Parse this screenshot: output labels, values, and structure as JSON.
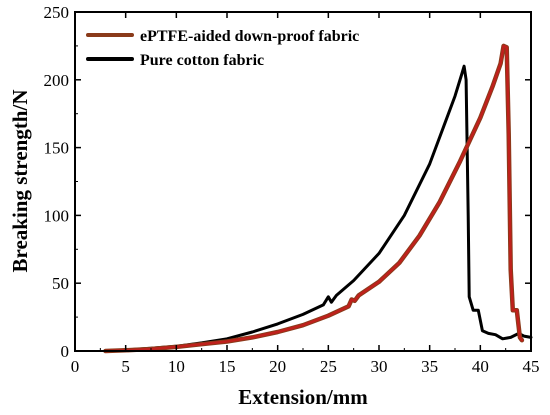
{
  "chart_data": {
    "type": "line",
    "xlabel": "Extension/mm",
    "ylabel": "Breaking strength/N",
    "xlim": [
      0,
      45
    ],
    "ylim": [
      0,
      250
    ],
    "xticks": [
      0,
      5,
      10,
      15,
      20,
      25,
      30,
      35,
      40,
      45
    ],
    "yticks": [
      0,
      50,
      100,
      150,
      200,
      250
    ],
    "grid": false,
    "legend_position": "top-left",
    "series": [
      {
        "name": "ePTFE-aided down-proof fabric",
        "color": "#c0201c",
        "outline": "#8a3a1a",
        "points": [
          [
            3,
            0
          ],
          [
            5,
            0.5
          ],
          [
            7.5,
            1.5
          ],
          [
            10,
            3
          ],
          [
            12.5,
            5
          ],
          [
            15,
            7
          ],
          [
            17.5,
            10
          ],
          [
            20,
            14
          ],
          [
            22.5,
            19
          ],
          [
            25,
            26
          ],
          [
            27,
            33
          ],
          [
            27.3,
            38
          ],
          [
            27.6,
            37
          ],
          [
            28,
            41
          ],
          [
            30,
            51
          ],
          [
            32,
            65
          ],
          [
            34,
            85
          ],
          [
            36,
            110
          ],
          [
            38,
            140
          ],
          [
            40,
            172
          ],
          [
            41.2,
            195
          ],
          [
            42,
            212
          ],
          [
            42.3,
            225
          ],
          [
            42.6,
            224
          ],
          [
            42.8,
            160
          ],
          [
            43,
            60
          ],
          [
            43.2,
            30
          ],
          [
            43.6,
            30
          ],
          [
            43.9,
            10
          ],
          [
            44.1,
            8
          ]
        ]
      },
      {
        "name": "Pure cotton fabric",
        "color": "#000000",
        "points": [
          [
            3,
            0
          ],
          [
            5,
            0.8
          ],
          [
            7.5,
            2
          ],
          [
            10,
            3.5
          ],
          [
            12.5,
            6
          ],
          [
            15,
            9
          ],
          [
            17.5,
            14
          ],
          [
            20,
            20
          ],
          [
            22.5,
            27
          ],
          [
            24.5,
            34
          ],
          [
            25,
            40
          ],
          [
            25.3,
            36
          ],
          [
            25.8,
            41
          ],
          [
            27.5,
            52
          ],
          [
            30,
            72
          ],
          [
            32.5,
            100
          ],
          [
            35,
            138
          ],
          [
            36.5,
            168
          ],
          [
            37.5,
            188
          ],
          [
            38.2,
            205
          ],
          [
            38.4,
            210
          ],
          [
            38.6,
            200
          ],
          [
            38.8,
            100
          ],
          [
            38.9,
            40
          ],
          [
            39.3,
            30
          ],
          [
            39.8,
            30
          ],
          [
            40.2,
            15
          ],
          [
            40.8,
            13
          ],
          [
            41.5,
            12
          ],
          [
            42.2,
            9
          ],
          [
            43,
            10
          ],
          [
            43.8,
            13
          ],
          [
            44.3,
            11
          ],
          [
            45,
            10
          ]
        ]
      }
    ]
  }
}
